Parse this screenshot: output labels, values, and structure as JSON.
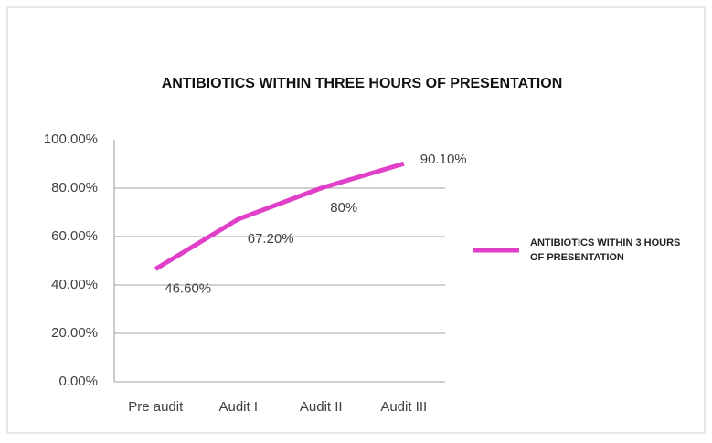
{
  "chart_data": {
    "type": "line",
    "title": "ANTIBIOTICS WITHIN THREE HOURS OF PRESENTATION",
    "categories": [
      "Pre audit",
      "Audit I",
      "Audit II",
      "Audit III"
    ],
    "series": [
      {
        "name": "ANTIBIOTICS WITHIN 3 HOURS OF PRESENTATION",
        "color": "#e040c8",
        "values": [
          46.6,
          67.2,
          80,
          90.1
        ],
        "value_labels": [
          "46.60%",
          "67.20%",
          "80%",
          "90.10%"
        ]
      }
    ],
    "ylim": [
      0,
      100
    ],
    "yticks": [
      {
        "value": 0,
        "label": "0.00%"
      },
      {
        "value": 20,
        "label": "20.00%"
      },
      {
        "value": 40,
        "label": "40.00%"
      },
      {
        "value": 60,
        "label": "60.00%"
      },
      {
        "value": 80,
        "label": "80.00%"
      },
      {
        "value": 100,
        "label": "100.00%"
      }
    ],
    "grid": true,
    "legend": "right"
  }
}
